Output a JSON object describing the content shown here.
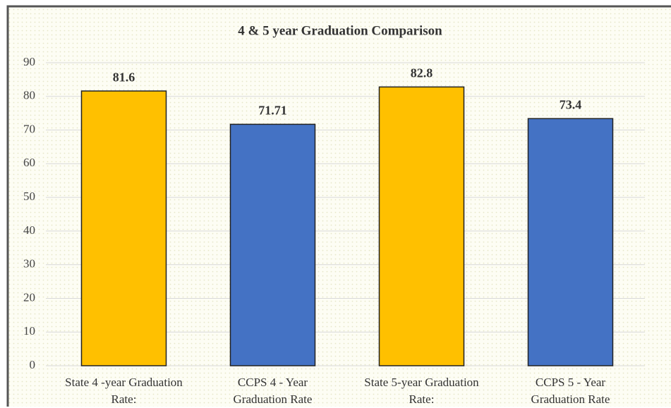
{
  "chart_data": {
    "type": "bar",
    "title": "4 & 5 year Graduation Comparison",
    "categories": [
      "State 4 -year Graduation Rate:",
      "CCPS 4 - Year Graduation Rate",
      "State 5-year Graduation Rate:",
      "CCPS 5 - Year Graduation Rate"
    ],
    "values": [
      81.6,
      71.71,
      82.8,
      73.4
    ],
    "colors": [
      "#FFC000",
      "#4472C4",
      "#FFC000",
      "#4472C4"
    ],
    "ylim": [
      0,
      90
    ],
    "yticks": [
      0,
      10,
      20,
      30,
      40,
      50,
      60,
      70,
      80,
      90
    ],
    "grid": true
  }
}
